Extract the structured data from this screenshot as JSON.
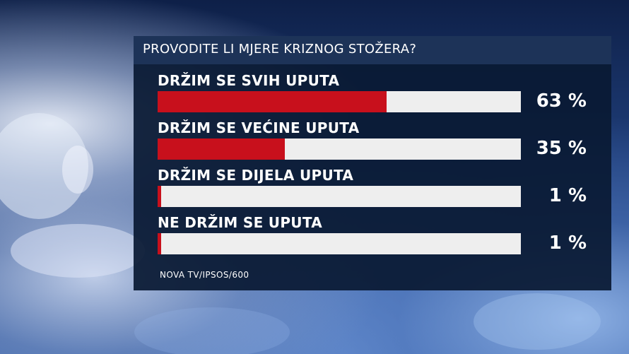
{
  "chart_data": {
    "type": "bar",
    "title": "PROVODITE LI MJERE KRIZNOG STOŽERA?",
    "categories": [
      "DRŽIM SE SVIH UPUTA",
      "DRŽIM SE VEĆINE UPUTA",
      "DRŽIM SE DIJELA UPUTA",
      "NE DRŽIM SE UPUTA"
    ],
    "values": [
      63,
      35,
      1,
      1
    ],
    "value_labels": [
      "63 %",
      "35 %",
      "1 %",
      "1 %"
    ],
    "xlim": [
      0,
      100
    ],
    "unit": "%",
    "source": "NOVA TV/IPSOS/600",
    "grid": false,
    "colors": {
      "bar": "#c8101c",
      "track": "#eeeeee",
      "text": "#ffffff",
      "panel": "#0a1a34",
      "title_bar": "#1d3358"
    }
  }
}
